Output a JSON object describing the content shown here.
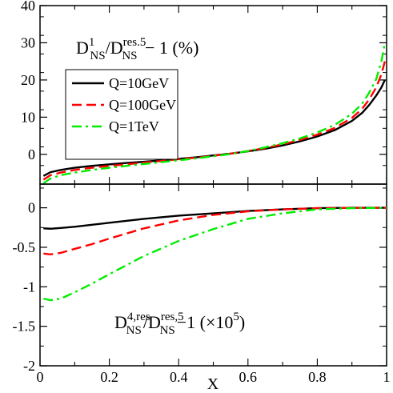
{
  "chart_data": [
    {
      "type": "line",
      "panel": "top",
      "annotation": {
        "num_main": "D",
        "num_sup": "1",
        "num_sub": "NS",
        "slash": "/D",
        "den_sup": "res.5",
        "den_sub": "NS",
        "tail": " − 1  (%)"
      },
      "xlim": [
        0,
        1
      ],
      "ylim": [
        -8,
        40
      ],
      "y_ticks": [
        0,
        10,
        20,
        30,
        40
      ],
      "y_tick_labels": [
        "0",
        "10",
        "20",
        "30",
        "40"
      ],
      "grid": false,
      "legend_position": "upper-left",
      "series": [
        {
          "name": "Q=10GeV",
          "color": "#000000",
          "dash": "solid",
          "points": [
            [
              0.01,
              -5.8
            ],
            [
              0.03,
              -4.8
            ],
            [
              0.06,
              -4.2
            ],
            [
              0.1,
              -3.6
            ],
            [
              0.15,
              -3.1
            ],
            [
              0.2,
              -2.7
            ],
            [
              0.25,
              -2.3
            ],
            [
              0.3,
              -2.0
            ],
            [
              0.35,
              -1.6
            ],
            [
              0.4,
              -1.2
            ],
            [
              0.45,
              -0.8
            ],
            [
              0.5,
              -0.3
            ],
            [
              0.55,
              0.2
            ],
            [
              0.6,
              0.8
            ],
            [
              0.65,
              1.5
            ],
            [
              0.7,
              2.4
            ],
            [
              0.75,
              3.5
            ],
            [
              0.8,
              4.8
            ],
            [
              0.85,
              6.5
            ],
            [
              0.9,
              9.0
            ],
            [
              0.93,
              11.2
            ],
            [
              0.95,
              13.3
            ],
            [
              0.97,
              15.8
            ],
            [
              0.985,
              18.0
            ],
            [
              0.995,
              20.0
            ]
          ]
        },
        {
          "name": "Q=100GeV",
          "color": "#ff0000",
          "dash": "dashed",
          "points": [
            [
              0.01,
              -6.8
            ],
            [
              0.03,
              -5.6
            ],
            [
              0.06,
              -4.9
            ],
            [
              0.1,
              -4.2
            ],
            [
              0.15,
              -3.6
            ],
            [
              0.2,
              -3.1
            ],
            [
              0.25,
              -2.7
            ],
            [
              0.3,
              -2.2
            ],
            [
              0.35,
              -1.8
            ],
            [
              0.4,
              -1.3
            ],
            [
              0.45,
              -0.9
            ],
            [
              0.5,
              -0.4
            ],
            [
              0.55,
              0.2
            ],
            [
              0.6,
              0.9
            ],
            [
              0.65,
              1.7
            ],
            [
              0.7,
              2.7
            ],
            [
              0.75,
              3.9
            ],
            [
              0.8,
              5.3
            ],
            [
              0.85,
              7.1
            ],
            [
              0.9,
              9.8
            ],
            [
              0.93,
              12.3
            ],
            [
              0.95,
              14.8
            ],
            [
              0.97,
              18.0
            ],
            [
              0.985,
              21.5
            ],
            [
              0.995,
              25.0
            ]
          ]
        },
        {
          "name": "Q=1TeV",
          "color": "#00ee00",
          "dash": "dash-dot",
          "points": [
            [
              0.01,
              -7.8
            ],
            [
              0.03,
              -6.5
            ],
            [
              0.06,
              -5.6
            ],
            [
              0.1,
              -4.9
            ],
            [
              0.15,
              -4.2
            ],
            [
              0.2,
              -3.6
            ],
            [
              0.25,
              -3.1
            ],
            [
              0.3,
              -2.6
            ],
            [
              0.35,
              -2.1
            ],
            [
              0.4,
              -1.6
            ],
            [
              0.45,
              -1.1
            ],
            [
              0.5,
              -0.5
            ],
            [
              0.55,
              0.1
            ],
            [
              0.6,
              0.9
            ],
            [
              0.65,
              1.9
            ],
            [
              0.7,
              3.0
            ],
            [
              0.75,
              4.3
            ],
            [
              0.8,
              5.9
            ],
            [
              0.85,
              7.9
            ],
            [
              0.9,
              10.9
            ],
            [
              0.93,
              13.7
            ],
            [
              0.95,
              16.6
            ],
            [
              0.97,
              20.2
            ],
            [
              0.985,
              25.0
            ],
            [
              0.995,
              30.0
            ]
          ]
        }
      ]
    },
    {
      "type": "line",
      "panel": "bottom",
      "annotation": {
        "num_main": "D",
        "num_sup": "4,res",
        "num_sub": "NS",
        "slash": "/D",
        "den_sup": "res,5",
        "den_sub": "NS",
        "tail": "−1  (×10",
        "tail_sup": "5",
        "tail_end": ")"
      },
      "xlim": [
        0,
        1
      ],
      "ylim": [
        -2,
        0.3
      ],
      "x_ticks": [
        0,
        0.2,
        0.4,
        0.6,
        0.8,
        1
      ],
      "x_tick_labels": [
        "0",
        "0.2",
        "0.4",
        "0.6",
        "0.8",
        "1"
      ],
      "y_ticks": [
        -2,
        -1.5,
        -1,
        -0.5,
        0
      ],
      "y_tick_labels": [
        "-2",
        "-1.5",
        "-1",
        "-0.5",
        "0"
      ],
      "xlabel": "X",
      "grid": false,
      "series": [
        {
          "name": "Q=10GeV",
          "color": "#000000",
          "dash": "solid",
          "points": [
            [
              0.01,
              -0.26
            ],
            [
              0.03,
              -0.265
            ],
            [
              0.06,
              -0.255
            ],
            [
              0.1,
              -0.24
            ],
            [
              0.15,
              -0.215
            ],
            [
              0.2,
              -0.19
            ],
            [
              0.3,
              -0.14
            ],
            [
              0.4,
              -0.1
            ],
            [
              0.5,
              -0.07
            ],
            [
              0.6,
              -0.04
            ],
            [
              0.7,
              -0.02
            ],
            [
              0.8,
              -0.005
            ],
            [
              0.9,
              0
            ],
            [
              1.0,
              0
            ]
          ]
        },
        {
          "name": "Q=100GeV",
          "color": "#ff0000",
          "dash": "dashed",
          "points": [
            [
              0.01,
              -0.58
            ],
            [
              0.03,
              -0.59
            ],
            [
              0.06,
              -0.57
            ],
            [
              0.1,
              -0.52
            ],
            [
              0.15,
              -0.46
            ],
            [
              0.2,
              -0.39
            ],
            [
              0.3,
              -0.26
            ],
            [
              0.4,
              -0.16
            ],
            [
              0.5,
              -0.09
            ],
            [
              0.6,
              -0.045
            ],
            [
              0.7,
              -0.02
            ],
            [
              0.8,
              -0.005
            ],
            [
              0.9,
              0
            ],
            [
              1.0,
              0
            ]
          ]
        },
        {
          "name": "Q=1TeV",
          "color": "#00ee00",
          "dash": "dash-dot",
          "points": [
            [
              0.01,
              -1.15
            ],
            [
              0.03,
              -1.17
            ],
            [
              0.06,
              -1.15
            ],
            [
              0.1,
              -1.07
            ],
            [
              0.15,
              -0.96
            ],
            [
              0.2,
              -0.84
            ],
            [
              0.3,
              -0.61
            ],
            [
              0.4,
              -0.42
            ],
            [
              0.5,
              -0.27
            ],
            [
              0.6,
              -0.14
            ],
            [
              0.7,
              -0.07
            ],
            [
              0.8,
              -0.02
            ],
            [
              0.9,
              -0.005
            ],
            [
              1.0,
              0
            ]
          ]
        }
      ]
    }
  ]
}
